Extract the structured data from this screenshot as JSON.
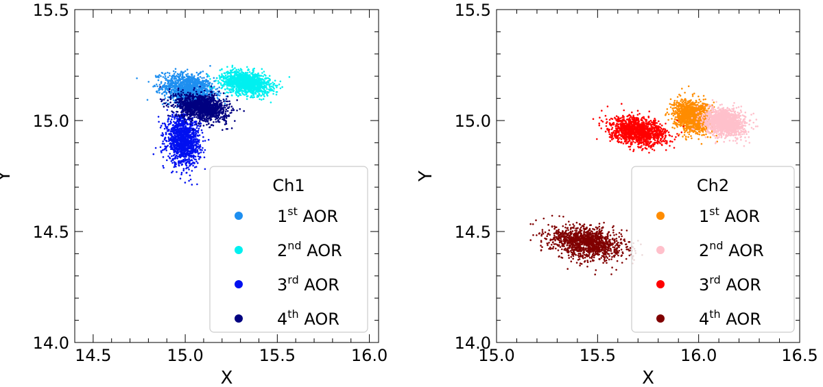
{
  "chart_data": [
    {
      "type": "scatter",
      "xlabel": "X",
      "ylabel": "Y",
      "xlim": [
        14.4,
        16.05
      ],
      "ylim": [
        14.0,
        15.5
      ],
      "xticks": [
        "14.5",
        "15.0",
        "15.5",
        "16.0"
      ],
      "yticks": [
        "14.0",
        "14.5",
        "15.0",
        "15.5"
      ],
      "legend": {
        "title": "Ch1",
        "position": "lower right",
        "entries": [
          {
            "main": "1",
            "sup": "st",
            "rest": " AOR",
            "color": "#1e8ff0"
          },
          {
            "main": "2",
            "sup": "nd",
            "rest": " AOR",
            "color": "#00f0f0"
          },
          {
            "main": "3",
            "sup": "rd",
            "rest": " AOR",
            "color": "#0010f0"
          },
          {
            "main": "4",
            "sup": "th",
            "rest": " AOR",
            "color": "#000080"
          }
        ]
      },
      "series": [
        {
          "color": "#1e8ff0",
          "center": [
            15.02,
            15.14
          ],
          "spread": [
            0.07,
            0.035
          ]
        },
        {
          "color": "#00f0f0",
          "center": [
            15.33,
            15.17
          ],
          "spread": [
            0.065,
            0.025
          ]
        },
        {
          "color": "#0010f0",
          "center": [
            14.99,
            14.91
          ],
          "spread": [
            0.045,
            0.055
          ]
        },
        {
          "color": "#000080",
          "center": [
            15.09,
            15.06
          ],
          "spread": [
            0.07,
            0.03
          ]
        }
      ]
    },
    {
      "type": "scatter",
      "xlabel": "X",
      "ylabel": "Y",
      "xlim": [
        15.0,
        16.5
      ],
      "ylim": [
        14.0,
        15.5
      ],
      "xticks": [
        "15.0",
        "15.5",
        "16.0",
        "16.5"
      ],
      "yticks": [
        "14.0",
        "14.5",
        "15.0",
        "15.5"
      ],
      "legend": {
        "title": "Ch2",
        "position": "lower right",
        "entries": [
          {
            "main": "1",
            "sup": "st",
            "rest": " AOR",
            "color": "#ff8c00"
          },
          {
            "main": "2",
            "sup": "nd",
            "rest": " AOR",
            "color": "#ffc0cb"
          },
          {
            "main": "3",
            "sup": "rd",
            "rest": " AOR",
            "color": "#ff0000"
          },
          {
            "main": "4",
            "sup": "th",
            "rest": " AOR",
            "color": "#800000"
          }
        ]
      },
      "series": [
        {
          "color": "#ff8c00",
          "center": [
            15.97,
            15.02
          ],
          "spread": [
            0.045,
            0.035
          ]
        },
        {
          "color": "#ffc0cb",
          "center": [
            16.13,
            14.99
          ],
          "spread": [
            0.05,
            0.03
          ]
        },
        {
          "color": "#ff0000",
          "center": [
            15.7,
            14.95
          ],
          "spread": [
            0.07,
            0.03
          ]
        },
        {
          "color": "#800000",
          "center": [
            15.45,
            14.45
          ],
          "spread": [
            0.09,
            0.035
          ]
        }
      ]
    }
  ]
}
